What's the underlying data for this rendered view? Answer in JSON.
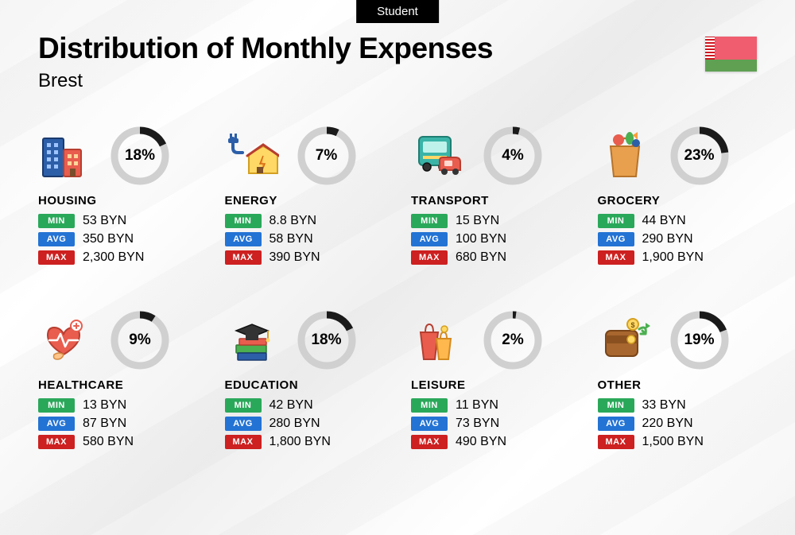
{
  "badge": "Student",
  "title": "Distribution of Monthly Expenses",
  "subtitle": "Brest",
  "currency": "BYN",
  "flag": {
    "red": "#ef5d6e",
    "green": "#5fa052",
    "ornament_bg": "#ffffff",
    "ornament_fg": "#ce1720"
  },
  "colors": {
    "min_badge": "#2aa85a",
    "avg_badge": "#2373d4",
    "max_badge": "#cd2020",
    "donut_track": "#d0d0d0",
    "donut_fill": "#1a1a1a",
    "text": "#000000",
    "badge_bg": "#000000"
  },
  "donut": {
    "radius": 32,
    "stroke_width": 9,
    "size": 76
  },
  "labels": {
    "min": "MIN",
    "avg": "AVG",
    "max": "MAX"
  },
  "categories": [
    {
      "key": "housing",
      "name": "HOUSING",
      "percent": 18,
      "min": "53 BYN",
      "avg": "350 BYN",
      "max": "2,300 BYN",
      "icon": "housing-icon"
    },
    {
      "key": "energy",
      "name": "ENERGY",
      "percent": 7,
      "min": "8.8 BYN",
      "avg": "58 BYN",
      "max": "390 BYN",
      "icon": "energy-icon"
    },
    {
      "key": "transport",
      "name": "TRANSPORT",
      "percent": 4,
      "min": "15 BYN",
      "avg": "100 BYN",
      "max": "680 BYN",
      "icon": "transport-icon"
    },
    {
      "key": "grocery",
      "name": "GROCERY",
      "percent": 23,
      "min": "44 BYN",
      "avg": "290 BYN",
      "max": "1,900 BYN",
      "icon": "grocery-icon"
    },
    {
      "key": "healthcare",
      "name": "HEALTHCARE",
      "percent": 9,
      "min": "13 BYN",
      "avg": "87 BYN",
      "max": "580 BYN",
      "icon": "healthcare-icon"
    },
    {
      "key": "education",
      "name": "EDUCATION",
      "percent": 18,
      "min": "42 BYN",
      "avg": "280 BYN",
      "max": "1,800 BYN",
      "icon": "education-icon"
    },
    {
      "key": "leisure",
      "name": "LEISURE",
      "percent": 2,
      "min": "11 BYN",
      "avg": "73 BYN",
      "max": "490 BYN",
      "icon": "leisure-icon"
    },
    {
      "key": "other",
      "name": "OTHER",
      "percent": 19,
      "min": "33 BYN",
      "avg": "220 BYN",
      "max": "1,500 BYN",
      "icon": "other-icon"
    }
  ]
}
